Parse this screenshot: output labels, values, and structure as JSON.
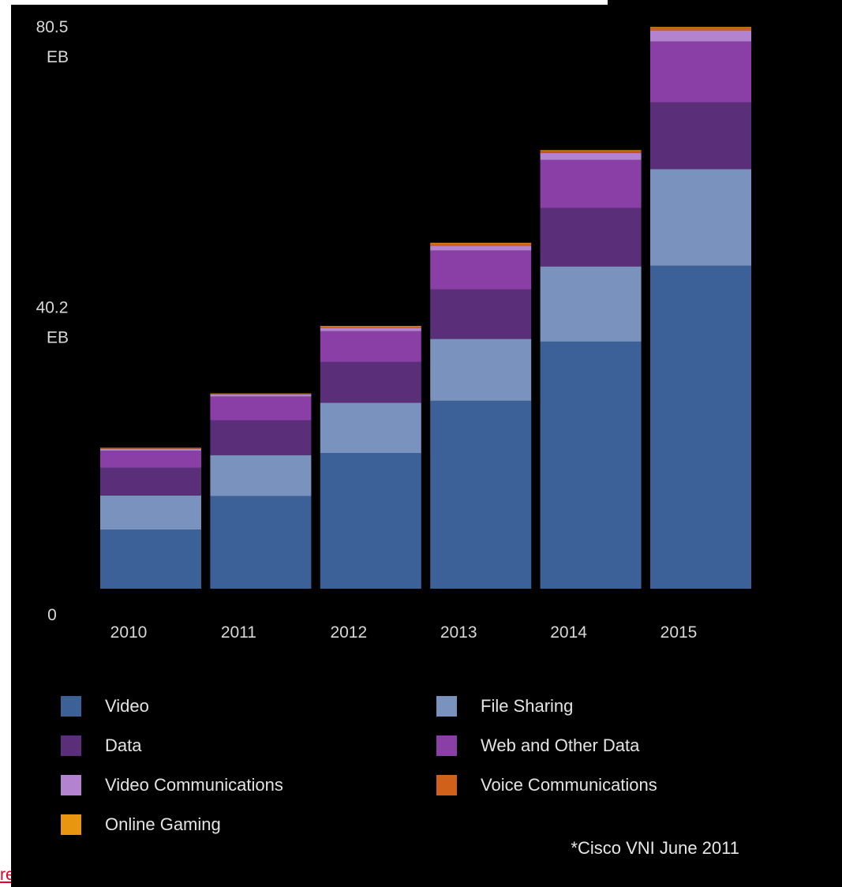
{
  "chart_data": {
    "type": "bar",
    "stacked": true,
    "categories": [
      "2010",
      "2011",
      "2012",
      "2013",
      "2014",
      "2015"
    ],
    "y_ticks": [
      {
        "value": 0,
        "label": "0",
        "unit": ""
      },
      {
        "value": 40.2,
        "label": "40.2",
        "unit": "EB"
      },
      {
        "value": 80.5,
        "label": "80.5",
        "unit": "EB"
      }
    ],
    "ylim": [
      0,
      80.5
    ],
    "series": [
      {
        "name": "Video",
        "color": "#3c6199",
        "values": [
          8.5,
          13.3,
          19.5,
          27.0,
          35.5,
          46.4
        ]
      },
      {
        "name": "File Sharing",
        "color": "#7992be",
        "values": [
          4.9,
          5.9,
          7.2,
          8.9,
          10.8,
          13.9
        ]
      },
      {
        "name": "Data",
        "color": "#5a2e78",
        "values": [
          4.0,
          5.0,
          5.9,
          7.1,
          8.4,
          9.6
        ]
      },
      {
        "name": "Web and Other Data",
        "color": "#8a3fa6",
        "values": [
          2.4,
          3.4,
          4.4,
          5.6,
          6.9,
          8.7
        ]
      },
      {
        "name": "Video Communications",
        "color": "#b383d0",
        "values": [
          0.3,
          0.3,
          0.5,
          0.7,
          1.0,
          1.6
        ]
      },
      {
        "name": "Voice Communications",
        "color": "#d0611a",
        "values": [
          0.1,
          0.1,
          0.2,
          0.3,
          0.3,
          0.4
        ]
      },
      {
        "name": "Online Gaming",
        "color": "#e8960f",
        "values": [
          0.05,
          0.05,
          0.05,
          0.1,
          0.1,
          0.1
        ]
      }
    ],
    "grid": false,
    "legend_position": "bottom"
  },
  "source_note": "*Cisco VNI June 2011",
  "corner_link_text": "re"
}
